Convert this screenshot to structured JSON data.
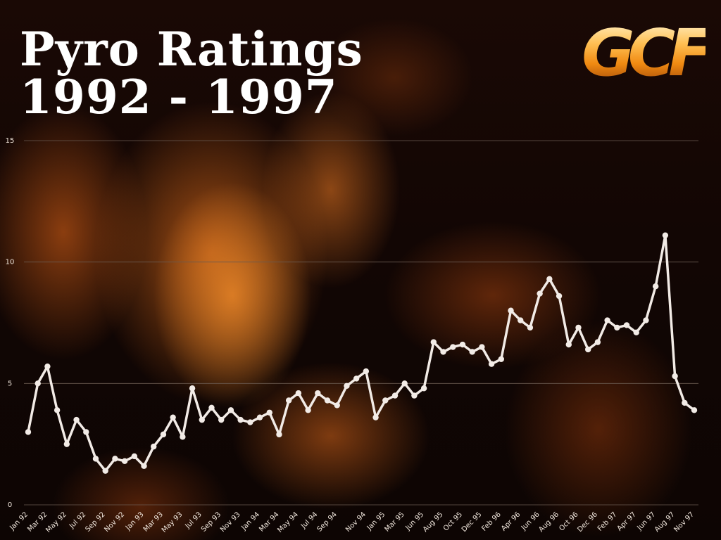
{
  "header": {
    "title_line1": "Pyro Ratings",
    "title_line2": "1992 - 1997",
    "logo_text": "GCF"
  },
  "colors": {
    "line": "#f2ebe6",
    "grid": "#6a5a50",
    "tick_text": "#f0e6dc"
  },
  "chart_data": {
    "type": "line",
    "title": "Pyro Ratings 1992 - 1997",
    "xlabel": "",
    "ylabel": "",
    "ylim": [
      0,
      15
    ],
    "yticks": [
      0,
      5,
      10,
      15
    ],
    "grid": true,
    "x_tick_labels": [
      "Jan 92",
      "Mar 92",
      "May 92",
      "Jul 92",
      "Sep 92",
      "Nov 92",
      "Jan 93",
      "Mar 93",
      "May 93",
      "Jul 93",
      "Sep 93",
      "Nov 93",
      "Jan 94",
      "Mar 94",
      "May 94",
      "Jul 94",
      "Sep 94",
      "Nov 94",
      "Jan 95",
      "Mar 95",
      "Jun 95",
      "Aug 95",
      "Oct 95",
      "Dec 95",
      "Feb 96",
      "Apr 96",
      "Jun 96",
      "Aug 96",
      "Oct 96",
      "Dec 96",
      "Feb 97",
      "Apr 97",
      "Jun 97",
      "Aug 97",
      "Nov 97"
    ],
    "series": [
      {
        "values": [
          3.0,
          5.0,
          5.7,
          3.9,
          2.5,
          3.5,
          3.0,
          1.9,
          1.4,
          1.9,
          1.8,
          2.0,
          1.6,
          2.4,
          2.9,
          3.6,
          2.8,
          4.8,
          3.5,
          4.0,
          3.5,
          3.9,
          3.5,
          3.4,
          3.6,
          3.8,
          2.9,
          4.3,
          4.6,
          3.9,
          4.6,
          4.3,
          4.1,
          4.9,
          5.2,
          5.5,
          3.6,
          4.3,
          4.5,
          5.0,
          4.5,
          4.8,
          6.7,
          6.3,
          6.5,
          6.6,
          6.3,
          6.5,
          5.8,
          6.0,
          8.0,
          7.6,
          7.3,
          8.7,
          9.3,
          8.6,
          6.6,
          7.3,
          6.4,
          6.7,
          7.6,
          7.3,
          7.4,
          7.1,
          7.6,
          9.0,
          11.1,
          5.3,
          4.2,
          3.9
        ]
      }
    ]
  }
}
